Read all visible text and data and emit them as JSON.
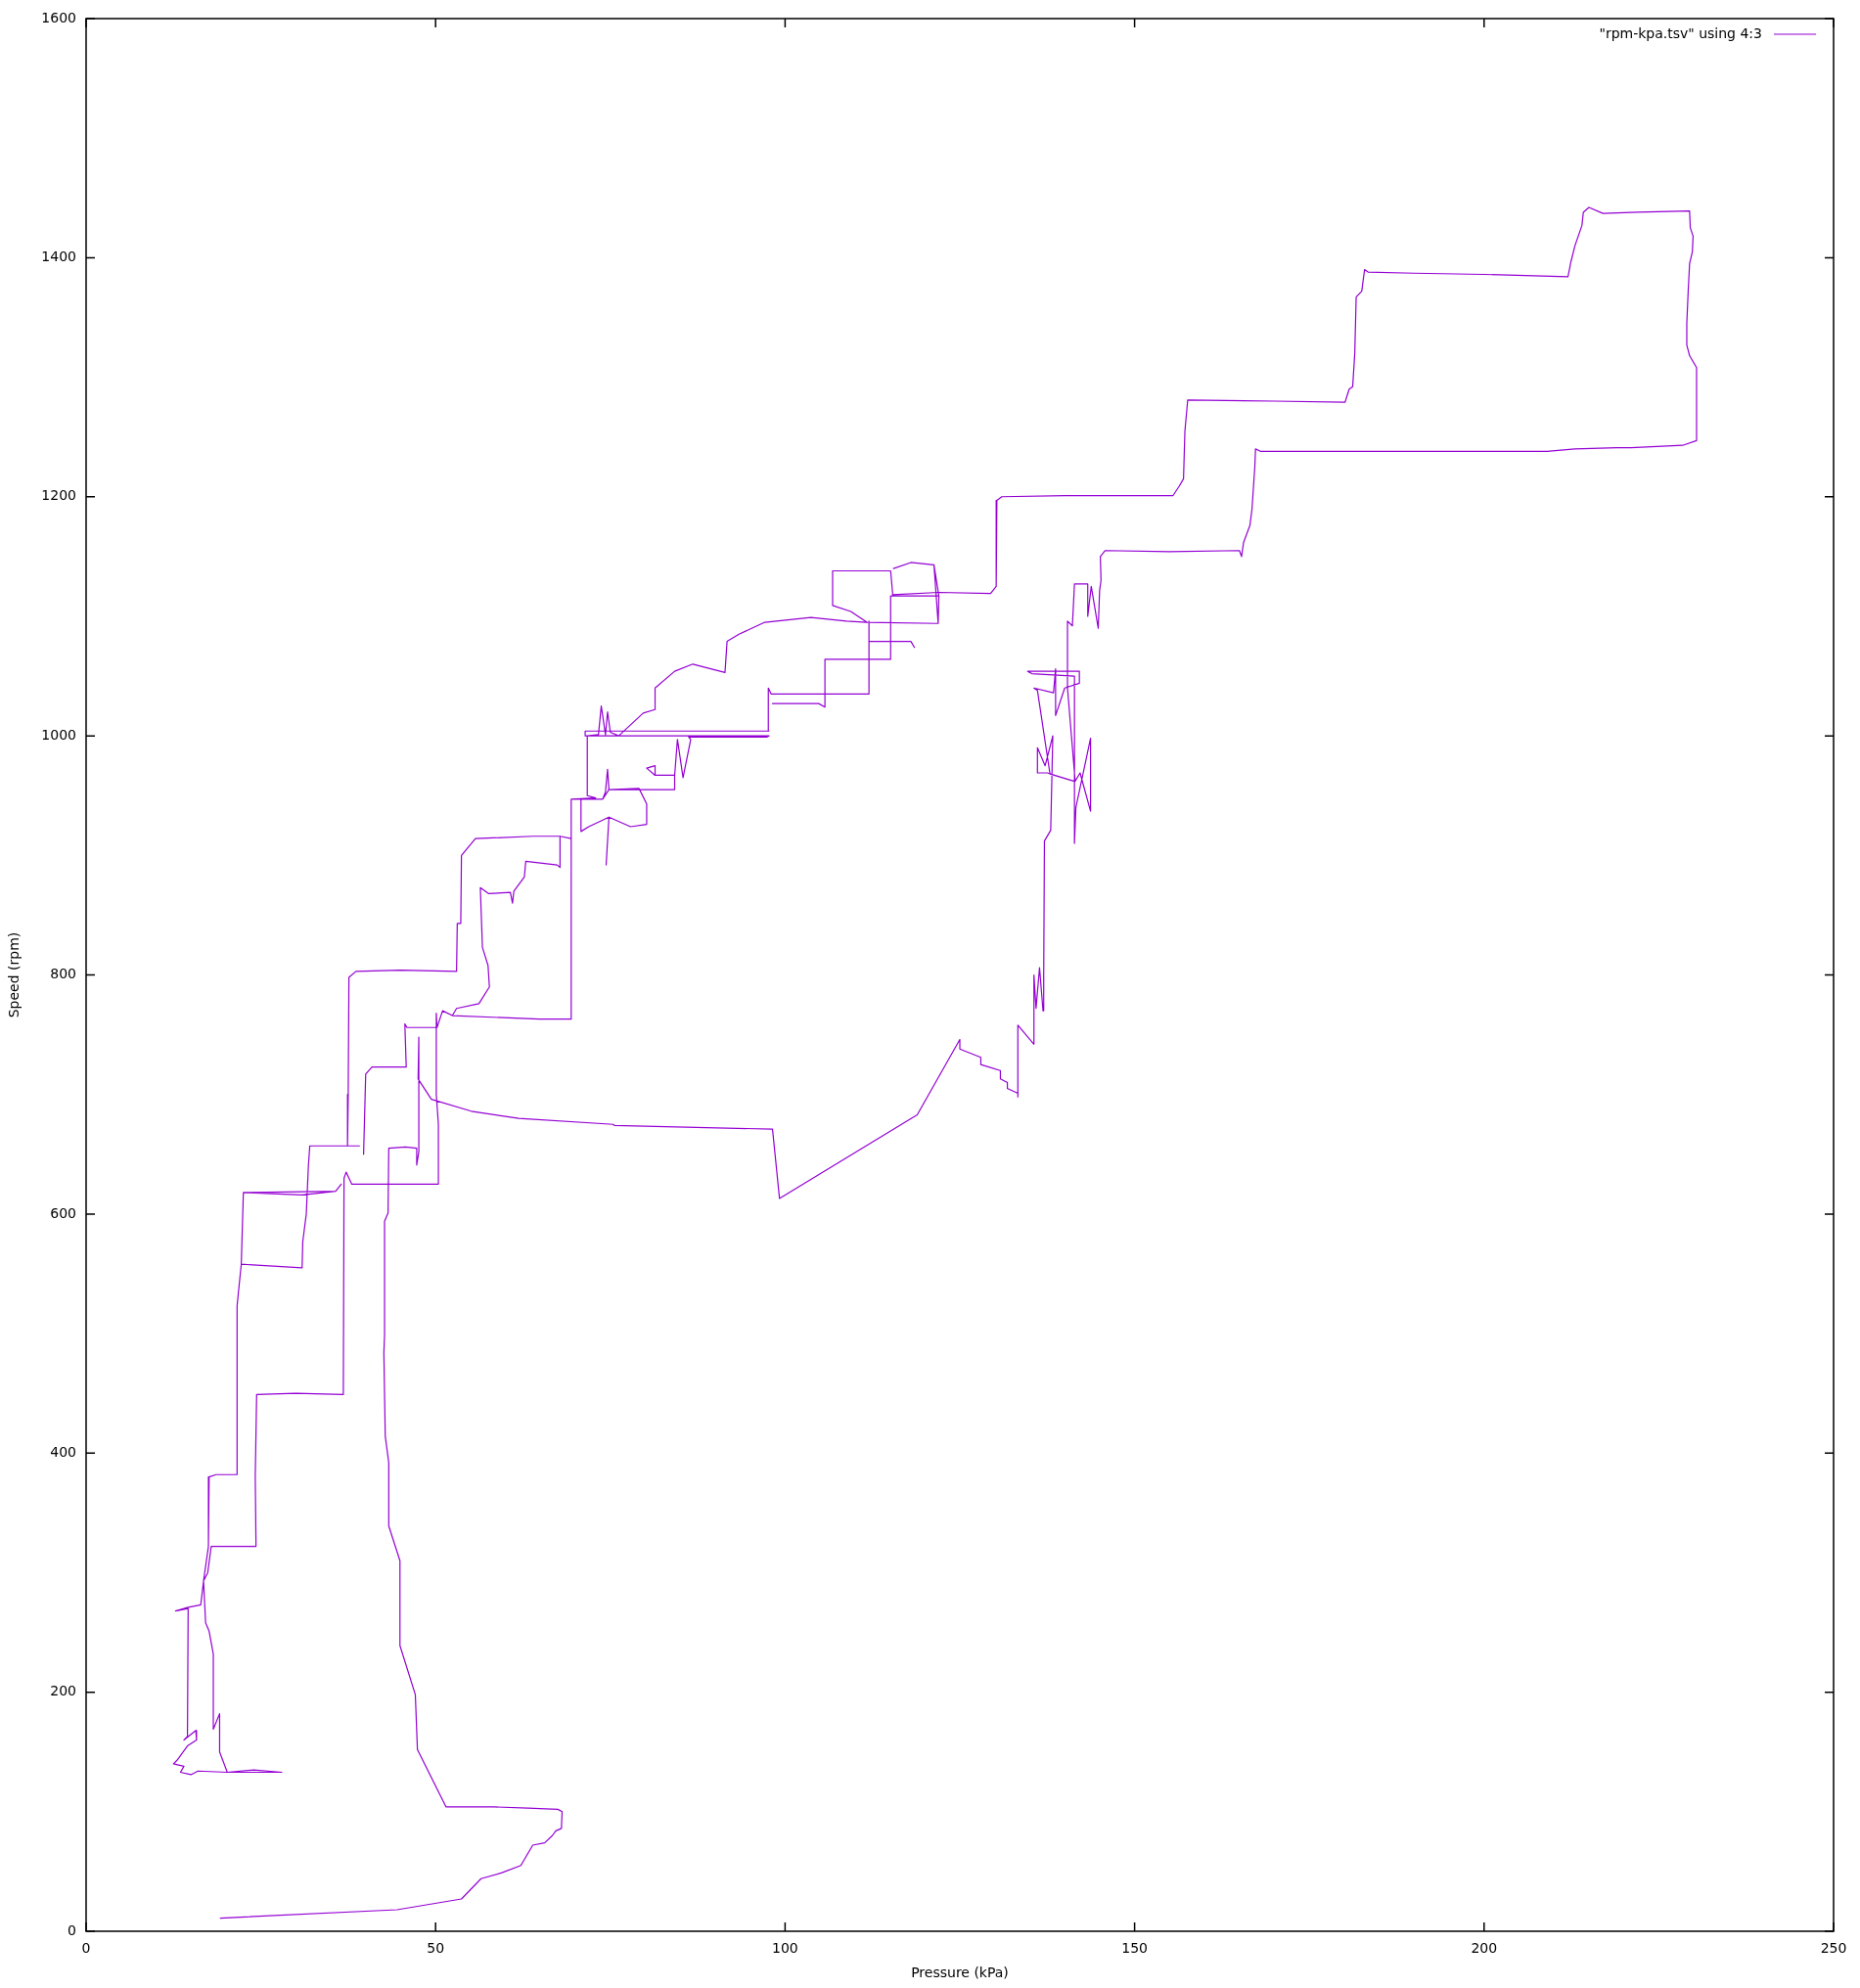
{
  "chart_data": {
    "type": "line",
    "xlabel": "Pressure (kPa)",
    "ylabel": "Speed (rpm)",
    "xlim": [
      0,
      250
    ],
    "xticks": [
      0,
      50,
      100,
      150,
      200,
      250
    ],
    "ylim": [
      0,
      1600
    ],
    "yticks": [
      0,
      200,
      400,
      600,
      800,
      1000,
      1200,
      1400,
      1600
    ],
    "legend": "top right",
    "x": [
      19.2,
      44.5,
      53.7,
      56.5,
      59.5,
      62.2,
      63.9,
      65.6,
      66.7,
      67.2,
      68,
      68.1,
      67.5,
      63.2,
      58.4,
      51.5,
      47.4,
      47.1,
      44.9,
      44.9,
      43.3,
      43.3,
      42.8,
      42.6,
      42.7,
      42.7,
      43.2,
      43.3,
      45.7,
      47.3,
      47.3,
      47.6,
      47.6,
      47.5,
      49.4,
      55.1,
      61.9,
      75.4,
      75.6,
      98.2,
      99.2,
      118.9,
      125,
      125,
      128,
      128,
      130.8,
      130.8,
      131.8,
      131.8,
      133.3,
      133.3,
      133.3,
      135.6,
      135.6,
      135.9,
      136.4,
      136.9,
      137,
      137.1,
      138,
      138.3,
      137.2,
      136.1,
      136.1,
      137.5,
      141.4,
      137.9,
      136.1,
      135.6,
      138.4,
      138.7,
      138.7,
      140,
      142.1,
      142.1,
      134.7,
      135.3,
      141.4,
      141.4,
      141.6,
      143.7,
      143.7,
      142.2,
      141.5,
      140.4,
      140.4,
      141.1,
      141.4,
      143.3,
      143.3,
      143.8,
      144.8,
      145,
      145.2,
      145.1,
      145.8,
      155,
      165,
      165.3,
      165.6,
      166.5,
      166.8,
      167.2,
      167.3,
      168,
      190,
      209,
      213,
      219,
      221,
      228.4,
      230.4,
      230.4,
      229.4,
      229,
      229,
      229.2,
      229.4,
      229.8,
      229.9,
      229.5,
      229.4,
      222,
      217,
      215,
      214.2,
      214,
      213,
      212.4,
      212,
      200,
      190,
      183.4,
      182.9,
      182.5,
      181.7,
      181.5,
      181.2,
      180.7,
      180.1,
      170,
      157.6,
      157.2,
      157,
      156.4,
      155.5,
      140,
      131,
      130.3,
      130.2,
      129.4,
      122,
      115.4,
      115.1,
      106.8,
      106.8,
      109.4,
      111.7,
      121.9,
      122,
      121.3,
      118,
      115.5,
      118,
      121.3,
      121.9,
      111.7,
      108.8,
      103.7,
      97.1,
      93.4,
      91.7,
      91.4,
      86.8,
      84.2,
      81.4,
      81.4,
      79.7,
      76.2,
      75,
      74.6,
      74.3,
      73.7,
      73.3,
      71.7,
      71.7,
      72.9,
      69.4,
      69.4,
      67.8,
      63.9,
      55.7,
      53.7,
      53.6,
      53.1,
      53,
      45,
      38.6,
      37.6,
      37.5,
      37.4,
      39.1,
      32,
      31.8,
      31.5,
      31,
      30.9,
      22.2,
      22.5,
      30.9,
      35.7,
      36.5,
      35.7,
      22.5,
      22.2,
      21.8,
      21.6,
      21.6,
      20.9,
      18.6,
      17.6,
      17.5,
      16.8,
      16.4,
      14.6,
      12.8,
      14.6,
      14.5,
      14,
      15.7,
      15.8,
      14.5,
      13,
      12.5,
      14,
      13.5,
      15,
      16,
      20.2,
      24,
      28,
      20.2,
      19.1,
      19.1,
      18.2,
      18.2,
      17.6,
      17.1,
      16.8,
      17.4,
      17.9,
      24.3,
      24.3,
      24.2,
      24.4,
      30,
      36.8,
      36.9,
      37.2,
      38,
      50.4,
      50.4,
      50.1,
      50.1,
      50.2,
      45.9,
      45.6,
      45.8,
      40.9,
      40,
      39.7,
      40,
      40.9,
      45.8,
      45.6,
      45.9,
      50.2,
      51,
      52.4,
      53,
      56.2,
      57.7,
      57.5,
      56.7,
      56.4,
      57.6,
      60.7,
      61,
      61.2,
      62.7,
      62.9,
      67.4,
      67.8,
      67.8,
      69.4,
      69.4,
      64.8,
      52.4,
      64.8,
      69.4,
      69.4,
      73.9,
      74.3,
      74.6,
      74.8,
      79.1,
      80.2,
      80.2,
      77.9,
      74.8,
      74.4,
      74.8,
      71.9,
      70.8,
      70.8,
      73.9,
      74.8,
      84.2,
      84.2,
      81.4,
      80.2,
      81.4,
      81.4,
      84.2,
      84.6,
      85.4,
      86.5,
      86.2,
      97.4,
      97.7,
      71.4,
      71.4,
      97.7,
      97.6,
      98,
      112,
      112,
      112,
      118,
      118.5,
      118,
      115.1,
      115.1,
      122,
      115.1,
      115.1,
      105.7,
      105.7,
      104.8,
      98.2
    ],
    "series": [
      {
        "name": "\"rpm-kpa.tsv\" using 4:3",
        "color": "#9400d3",
        "values": [
          11,
          18,
          27,
          44,
          49,
          55,
          72,
          74,
          80,
          84,
          86,
          100,
          102,
          103,
          104,
          104,
          152,
          198,
          239,
          310,
          339,
          392,
          414,
          484,
          499,
          594,
          601,
          655,
          656,
          655,
          641,
          652,
          748,
          713,
          696,
          686,
          680,
          675,
          674,
          671,
          613,
          683,
          746,
          738,
          731,
          725,
          720,
          713,
          710,
          705,
          701,
          698,
          758,
          742,
          800,
          772,
          806,
          770,
          800,
          912,
          921,
          1000,
          975,
          990,
          969,
          969,
          962,
          968,
          1038,
          1040,
          1036,
          1056,
          1017,
          1040,
          1044,
          1054,
          1054,
          1052,
          1050,
          910,
          940,
          998,
          937,
          969,
          962,
          1040,
          1096,
          1092,
          1127,
          1127,
          1100,
          1125,
          1090,
          1122,
          1130,
          1150,
          1155,
          1154,
          1155,
          1150,
          1162,
          1176,
          1190,
          1225,
          1240,
          1238,
          1238,
          1238,
          1240,
          1241,
          1241,
          1243,
          1247,
          1308,
          1318,
          1327,
          1345,
          1372,
          1395,
          1405,
          1418,
          1425,
          1439,
          1438,
          1437,
          1442,
          1438,
          1427,
          1410,
          1396,
          1384,
          1386,
          1387,
          1388,
          1390,
          1372,
          1367,
          1320,
          1292,
          1290,
          1279,
          1280,
          1281,
          1255,
          1215,
          1209,
          1201,
          1201,
          1200,
          1197,
          1125,
          1119,
          1120,
          1118,
          1138,
          1138,
          1109,
          1104,
          1095,
          1094,
          1117,
          1143,
          1145,
          1140,
          1145,
          1143,
          1094,
          1095,
          1096,
          1099,
          1095,
          1085,
          1079,
          1053,
          1060,
          1054,
          1040,
          1022,
          1019,
          1000,
          1003,
          1020,
          1001,
          1025,
          1001,
          1000,
          950,
          948,
          947,
          914,
          916,
          916,
          914,
          900,
          843,
          843,
          803,
          804,
          803,
          798,
          700,
          657,
          657,
          657,
          640,
          600,
          577,
          555,
          558,
          618,
          616,
          619,
          625,
          619,
          618,
          558,
          535,
          523,
          382,
          382,
          382,
          380,
          322,
          293,
          273,
          271,
          268,
          270,
          163,
          160,
          168,
          160,
          155,
          143,
          140,
          138,
          133,
          131,
          134,
          133,
          135,
          133,
          133,
          150,
          182,
          169,
          232,
          251,
          258,
          293,
          300,
          322,
          322,
          327,
          380,
          449,
          450,
          449,
          630,
          635,
          625,
          625,
          675,
          700,
          768,
          756,
          756,
          759,
          723,
          723,
          717,
          650,
          717,
          723,
          723,
          759,
          756,
          756,
          770,
          766,
          772,
          776,
          790,
          808,
          823,
          873,
          868,
          869,
          860,
          870,
          882,
          895,
          892,
          890,
          916,
          914,
          763,
          763,
          766,
          763,
          763,
          947,
          947,
          953,
          972,
          955,
          956,
          943,
          926,
          924,
          932,
          892,
          932,
          924,
          920,
          947,
          947,
          955,
          955,
          967,
          967,
          973,
          975,
          967,
          967,
          997,
          965,
          997,
          999,
          999,
          1000,
          1000,
          1004,
          1004,
          1040,
          1035,
          1035,
          1096,
          1079,
          1079,
          1074,
          1079,
          1079,
          1117,
          1117,
          1117,
          1064,
          1064,
          1024,
          1027,
          1027
        ]
      }
    ]
  }
}
